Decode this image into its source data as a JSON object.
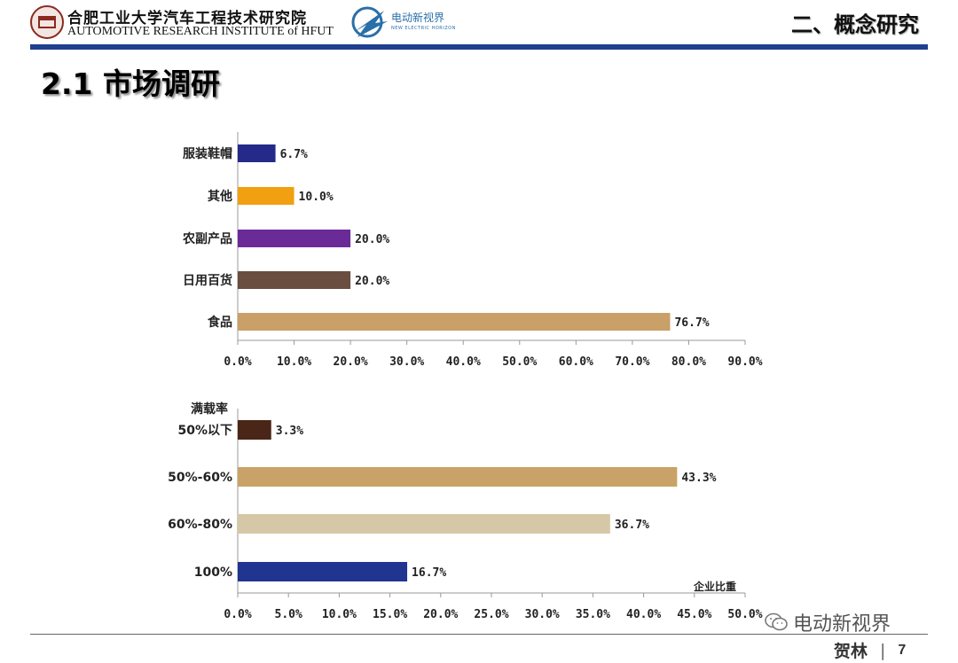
{
  "header": {
    "institute_cn": "合肥工业大学汽车工程技术研究院",
    "institute_en": "AUTOMOTIVE RESEARCH INSTITUTE of HFUT",
    "partner_cn": "电动新视界",
    "partner_en": "NEW ELECTRIC HORIZON",
    "section_title": "二、概念研究"
  },
  "page_title": "2.1 市场调研",
  "footer": {
    "watermark": "电动新视界",
    "author": "贺林",
    "separator": "|",
    "page_number": "7"
  },
  "colors": {
    "rule": "#1f3f8f"
  },
  "chart_data": [
    {
      "type": "bar",
      "orientation": "horizontal",
      "categories": [
        "服装鞋帽",
        "其他",
        "农副产品",
        "日用百货",
        "食品"
      ],
      "values": [
        6.7,
        10.0,
        20.0,
        20.0,
        76.7
      ],
      "value_labels": [
        "6.7%",
        "10.0%",
        "20.0%",
        "20.0%",
        "76.7%"
      ],
      "colors": [
        "#252a8a",
        "#f0a010",
        "#6a2a98",
        "#6a4e40",
        "#c8a068"
      ],
      "xlim": [
        0,
        90
      ],
      "xticks": [
        "0.0%",
        "10.0%",
        "20.0%",
        "30.0%",
        "40.0%",
        "50.0%",
        "60.0%",
        "70.0%",
        "80.0%",
        "90.0%"
      ],
      "grid": false
    },
    {
      "type": "bar",
      "orientation": "horizontal",
      "ylabel": "满载率",
      "xlabel": "企业比重",
      "categories": [
        "50%以下",
        "50%-60%",
        "60%-80%",
        "100%"
      ],
      "values": [
        3.3,
        43.3,
        36.7,
        16.7
      ],
      "value_labels": [
        "3.3%",
        "43.3%",
        "36.7%",
        "16.7%"
      ],
      "colors": [
        "#4a2618",
        "#c9a268",
        "#d6c8a6",
        "#1f3590"
      ],
      "xlim": [
        0,
        50
      ],
      "xticks": [
        "0.0%",
        "5.0%",
        "10.0%",
        "15.0%",
        "20.0%",
        "25.0%",
        "30.0%",
        "35.0%",
        "40.0%",
        "45.0%",
        "50.0%"
      ],
      "grid": false
    }
  ]
}
